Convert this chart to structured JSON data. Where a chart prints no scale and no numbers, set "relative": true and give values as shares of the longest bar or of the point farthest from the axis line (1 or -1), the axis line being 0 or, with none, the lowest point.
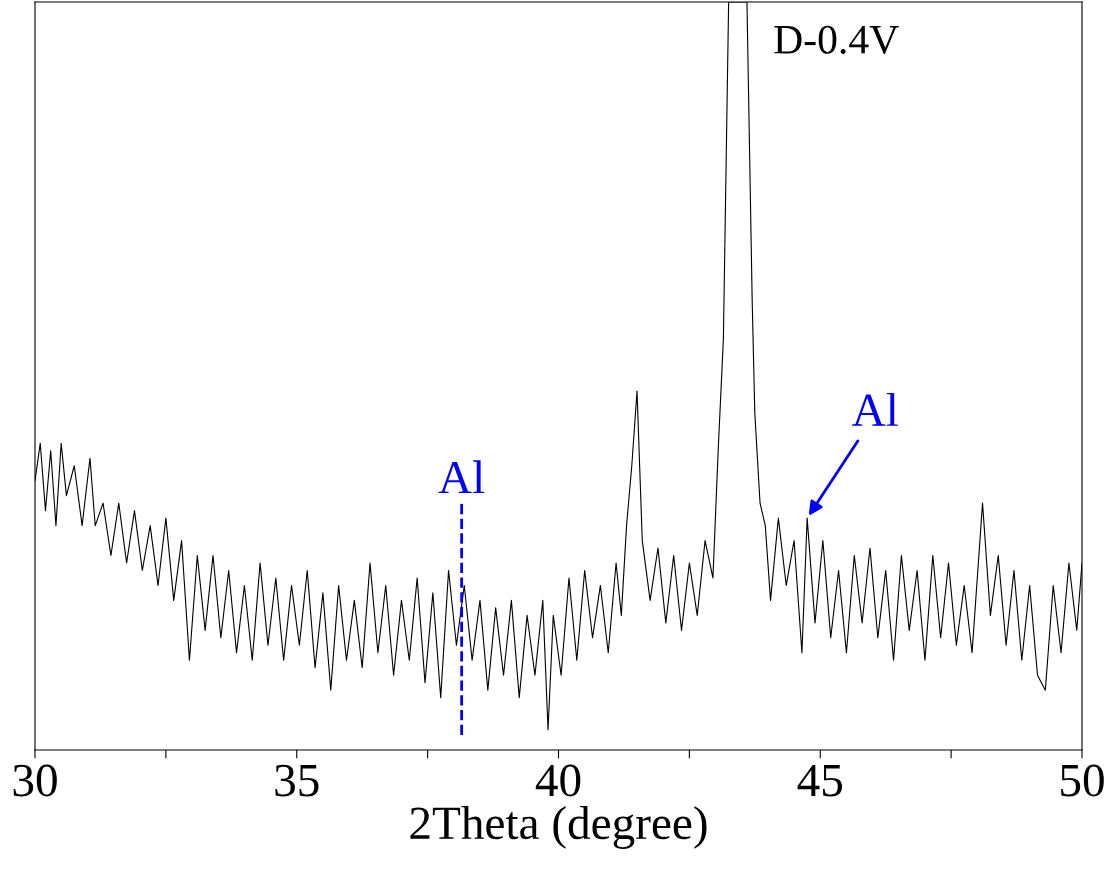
{
  "chart_data": {
    "type": "line",
    "relative": true,
    "xlabel": "2Theta (degree)",
    "xlim": [
      30,
      50
    ],
    "xticks": [
      30,
      {
        "value": 32.5,
        "label": null
      },
      35,
      {
        "value": 37.5,
        "label": null
      },
      40,
      {
        "value": 42.5,
        "label": null
      },
      45,
      {
        "value": 47.5,
        "label": null
      },
      50
    ],
    "tick_labels": "x",
    "grid": false,
    "annotations": [
      "D-0.4V",
      {
        "text": "Al",
        "x": 44.75,
        "y": 0.31
      }
    ],
    "ref_lines": [
      {
        "axis": "x",
        "value": 38.15,
        "label": "Al",
        "color": "#0000ff",
        "line_style": "dashed"
      }
    ],
    "series": [
      {
        "color": "#000000",
        "x": [
          30.0,
          30.1,
          30.2,
          30.3,
          30.4,
          30.5,
          30.6,
          30.75,
          30.9,
          31.05,
          31.15,
          31.3,
          31.45,
          31.6,
          31.75,
          31.9,
          32.05,
          32.2,
          32.35,
          32.5,
          32.65,
          32.8,
          32.95,
          33.1,
          33.25,
          33.4,
          33.55,
          33.7,
          33.85,
          34.0,
          34.15,
          34.3,
          34.45,
          34.6,
          34.75,
          34.9,
          35.05,
          35.2,
          35.35,
          35.5,
          35.65,
          35.8,
          35.95,
          36.1,
          36.25,
          36.4,
          36.55,
          36.7,
          36.85,
          37.0,
          37.15,
          37.3,
          37.45,
          37.6,
          37.75,
          37.9,
          38.05,
          38.2,
          38.35,
          38.5,
          38.65,
          38.8,
          38.95,
          39.1,
          39.25,
          39.4,
          39.55,
          39.7,
          39.8,
          39.9,
          40.05,
          40.2,
          40.35,
          40.5,
          40.65,
          40.8,
          40.95,
          41.1,
          41.2,
          41.3,
          41.4,
          41.5,
          41.55,
          41.6,
          41.75,
          41.9,
          42.05,
          42.2,
          42.35,
          42.5,
          42.65,
          42.8,
          42.95,
          43.05,
          43.15,
          43.25,
          43.6,
          43.7,
          43.75,
          43.85,
          43.95,
          44.05,
          44.2,
          44.35,
          44.5,
          44.65,
          44.75,
          44.9,
          45.05,
          45.2,
          45.35,
          45.5,
          45.65,
          45.8,
          45.95,
          46.1,
          46.25,
          46.4,
          46.55,
          46.7,
          46.85,
          47.0,
          47.15,
          47.3,
          47.45,
          47.6,
          47.75,
          47.9,
          48.1,
          48.25,
          48.4,
          48.55,
          48.7,
          48.85,
          49.0,
          49.15,
          49.3,
          49.45,
          49.6,
          49.75,
          49.9,
          50.0
        ],
        "values": [
          0.36,
          0.41,
          0.32,
          0.4,
          0.3,
          0.41,
          0.34,
          0.38,
          0.3,
          0.39,
          0.3,
          0.33,
          0.26,
          0.33,
          0.25,
          0.32,
          0.24,
          0.3,
          0.22,
          0.31,
          0.2,
          0.28,
          0.12,
          0.26,
          0.16,
          0.26,
          0.15,
          0.24,
          0.13,
          0.22,
          0.12,
          0.25,
          0.14,
          0.23,
          0.12,
          0.22,
          0.14,
          0.24,
          0.11,
          0.21,
          0.08,
          0.22,
          0.12,
          0.2,
          0.11,
          0.25,
          0.13,
          0.22,
          0.1,
          0.2,
          0.12,
          0.23,
          0.09,
          0.21,
          0.07,
          0.24,
          0.14,
          0.22,
          0.12,
          0.2,
          0.08,
          0.19,
          0.1,
          0.2,
          0.07,
          0.18,
          0.1,
          0.2,
          0.027,
          0.18,
          0.1,
          0.23,
          0.12,
          0.24,
          0.15,
          0.22,
          0.13,
          0.25,
          0.18,
          0.3,
          0.38,
          0.48,
          0.38,
          0.28,
          0.2,
          0.27,
          0.17,
          0.26,
          0.16,
          0.25,
          0.18,
          0.28,
          0.23,
          0.4,
          0.55,
          1.0,
          1.0,
          0.6,
          0.45,
          0.33,
          0.3,
          0.2,
          0.31,
          0.22,
          0.28,
          0.13,
          0.31,
          0.17,
          0.28,
          0.15,
          0.24,
          0.13,
          0.26,
          0.17,
          0.27,
          0.15,
          0.24,
          0.12,
          0.26,
          0.16,
          0.24,
          0.12,
          0.26,
          0.15,
          0.25,
          0.14,
          0.22,
          0.13,
          0.33,
          0.18,
          0.26,
          0.14,
          0.24,
          0.12,
          0.22,
          0.1,
          0.08,
          0.22,
          0.13,
          0.25,
          0.16,
          0.25
        ]
      }
    ]
  }
}
